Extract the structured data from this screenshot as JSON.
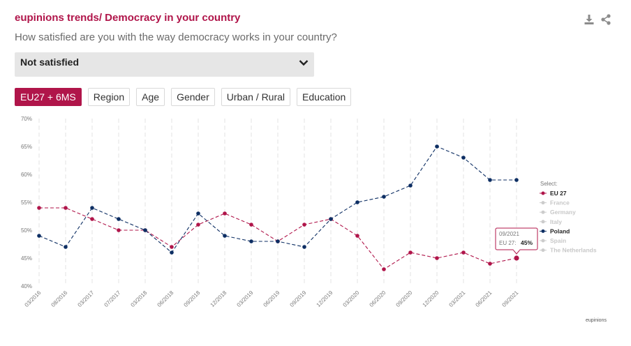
{
  "header": {
    "title": "eupinions trends/ Democracy in your country",
    "question": "How satisfied are you with the way democracy works in your country?"
  },
  "toolbar": {
    "download_icon": "download-icon",
    "share_icon": "share-icon"
  },
  "answer_select": {
    "value": "Not satisfied"
  },
  "tabs": [
    {
      "label": "EU27 + 6MS",
      "active": true
    },
    {
      "label": "Region",
      "active": false
    },
    {
      "label": "Age",
      "active": false
    },
    {
      "label": "Gender",
      "active": false
    },
    {
      "label": "Urban / Rural",
      "active": false
    },
    {
      "label": "Education",
      "active": false
    }
  ],
  "credit": "eupinions",
  "colors": {
    "accent": "#b0154a",
    "eu27": "#b0154a",
    "poland": "#0d2e63",
    "inactive": "#cccccc"
  },
  "chart_data": {
    "type": "line",
    "x": [
      "03/2016",
      "08/2016",
      "03/2017",
      "07/2017",
      "03/2018",
      "06/2018",
      "09/2018",
      "12/2018",
      "03/2019",
      "06/2019",
      "09/2019",
      "12/2019",
      "03/2020",
      "06/2020",
      "09/2020",
      "12/2020",
      "03/2021",
      "06/2021",
      "09/2021"
    ],
    "y_ticks": [
      "40%",
      "45%",
      "50%",
      "55%",
      "60%",
      "65%",
      "70%"
    ],
    "ylim": [
      40,
      70
    ],
    "grid": "vertical dashed",
    "legend_title": "Select:",
    "legend_position": "right",
    "series": [
      {
        "name": "EU 27",
        "color": "#b0154a",
        "active": true,
        "values": [
          54,
          54,
          52,
          50,
          50,
          47,
          51,
          53,
          51,
          48,
          51,
          52,
          49,
          43,
          46,
          45,
          46,
          44,
          45
        ]
      },
      {
        "name": "France",
        "active": false,
        "values": null
      },
      {
        "name": "Germany",
        "active": false,
        "values": null
      },
      {
        "name": "Italy",
        "active": false,
        "values": null
      },
      {
        "name": "Poland",
        "color": "#0d2e63",
        "active": true,
        "values": [
          49,
          47,
          54,
          52,
          50,
          46,
          53,
          49,
          48,
          48,
          47,
          52,
          55,
          56,
          58,
          65,
          63,
          59,
          59
        ]
      },
      {
        "name": "Spain",
        "active": false,
        "values": null
      },
      {
        "name": "The Netherlands",
        "active": false,
        "values": null
      }
    ],
    "tooltip": {
      "date": "09/2021",
      "label": "EU 27:",
      "value": "45%"
    }
  }
}
